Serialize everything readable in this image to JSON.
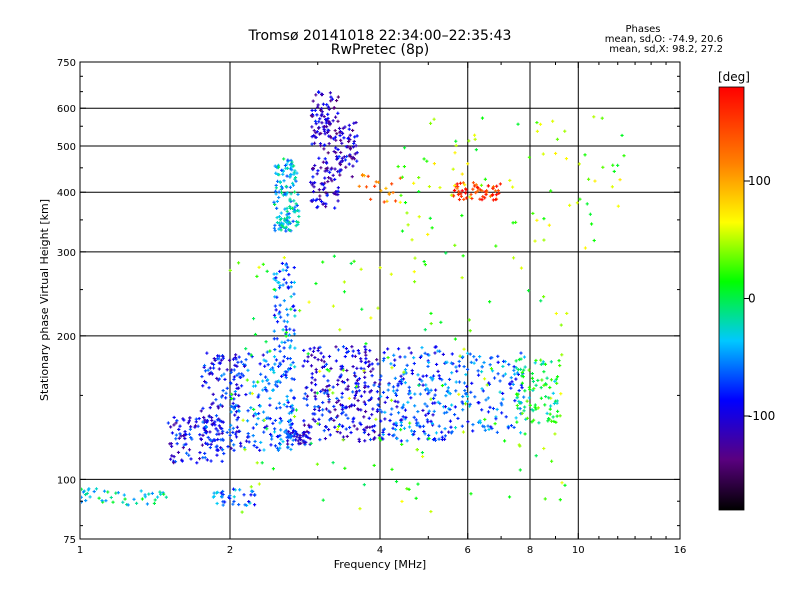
{
  "chart_data": {
    "type": "scatter",
    "title": "Tromsø 20141018 22:34:00–22:35:43",
    "subtitle": "RwPretec (8p)",
    "annotation": {
      "heading": "Phases",
      "line1": "mean, sd,O: -74.9, 20.6",
      "line2": "mean, sd,X:  98.2, 27.2"
    },
    "xlabel": "Frequency [MHz]",
    "ylabel": "Stationary phase Virtual Height [km]",
    "x_scale": "log",
    "y_scale": "log",
    "xlim": [
      1,
      16
    ],
    "ylim": [
      75,
      750
    ],
    "x_ticks": [
      1,
      2,
      4,
      6,
      8,
      10,
      16
    ],
    "x_tick_labels": [
      "1",
      "2",
      "4",
      "6",
      "8",
      "10",
      "16"
    ],
    "x_gridlines": [
      2,
      4,
      6,
      8,
      10
    ],
    "y_ticks": [
      75,
      100,
      200,
      300,
      400,
      500,
      600,
      750
    ],
    "y_tick_labels": [
      "75",
      "100",
      "200",
      "300",
      "400",
      "500",
      "600",
      "750"
    ],
    "y_gridlines": [
      100,
      200,
      300,
      400,
      500,
      600
    ],
    "grid": true,
    "colorbar": {
      "label": "[deg]",
      "range": [
        -180,
        180
      ],
      "ticks": [
        100,
        0,
        -100
      ],
      "tick_labels": [
        "100",
        "0",
        "-100"
      ],
      "colormap": "rainbow"
    },
    "series": [
      {
        "x_range": [
          1.0,
          1.5
        ],
        "y_range": [
          88,
          96
        ],
        "phase": -20,
        "count": 45
      },
      {
        "x_range": [
          1.5,
          1.95
        ],
        "y_range": [
          108,
          135
        ],
        "phase": -95,
        "count": 110
      },
      {
        "x_range": [
          1.75,
          2.1
        ],
        "y_range": [
          115,
          185
        ],
        "phase": -85,
        "count": 120
      },
      {
        "x_range": [
          1.85,
          2.25
        ],
        "y_range": [
          88,
          96
        ],
        "phase": -60,
        "count": 35
      },
      {
        "x_range": [
          2.0,
          2.45
        ],
        "y_range": [
          115,
          185
        ],
        "phase": -70,
        "count": 110
      },
      {
        "x_range": [
          2.45,
          2.7
        ],
        "y_range": [
          115,
          285
        ],
        "phase": -60,
        "count": 160
      },
      {
        "x_range": [
          2.6,
          2.9
        ],
        "y_range": [
          118,
          126
        ],
        "phase": -90,
        "count": 45
      },
      {
        "x_range": [
          2.45,
          2.75
        ],
        "y_range": [
          330,
          470
        ],
        "phase": -35,
        "count": 140
      },
      {
        "x_range": [
          2.9,
          3.3
        ],
        "y_range": [
          370,
          650
        ],
        "phase": -110,
        "count": 170
      },
      {
        "x_range": [
          3.3,
          3.6
        ],
        "y_range": [
          430,
          560
        ],
        "phase": -105,
        "count": 60
      },
      {
        "x_range": [
          2.8,
          4.0
        ],
        "y_range": [
          120,
          190
        ],
        "phase": -95,
        "count": 260
      },
      {
        "x_range": [
          3.6,
          4.4
        ],
        "y_range": [
          380,
          440
        ],
        "phase": 120,
        "count": 20
      },
      {
        "x_range": [
          4.0,
          5.5
        ],
        "y_range": [
          120,
          190
        ],
        "phase": -70,
        "count": 200
      },
      {
        "x_range": [
          5.5,
          7.8
        ],
        "y_range": [
          125,
          185
        ],
        "phase": -60,
        "count": 140
      },
      {
        "x_range": [
          7.5,
          9.2
        ],
        "y_range": [
          130,
          180
        ],
        "phase": 0,
        "count": 90
      },
      {
        "x_range": [
          5.6,
          7.0
        ],
        "y_range": [
          385,
          420
        ],
        "phase": 150,
        "count": 60
      },
      {
        "x_range": [
          4.3,
          12.5
        ],
        "y_range": [
          300,
          600
        ],
        "phase": 40,
        "count": 90
      },
      {
        "x_range": [
          2.0,
          9.5
        ],
        "y_range": [
          85,
          300
        ],
        "phase": 30,
        "count": 160
      }
    ]
  }
}
